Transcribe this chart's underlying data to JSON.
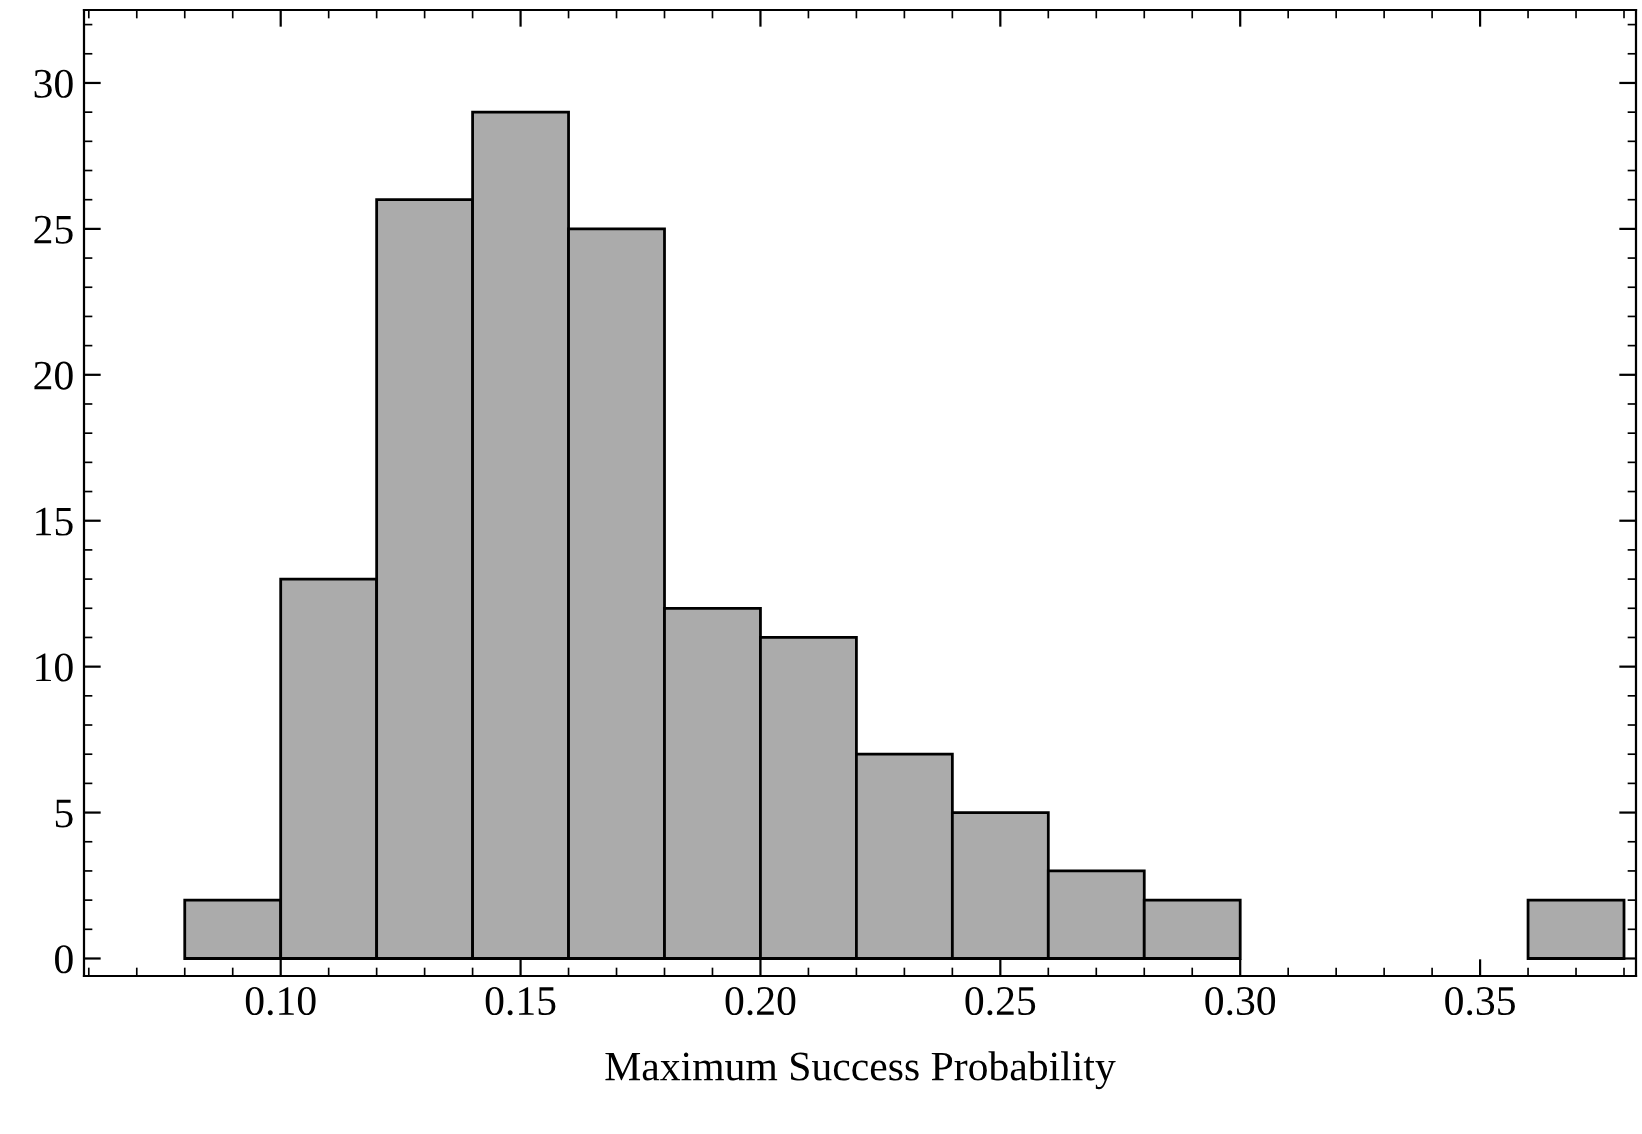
{
  "chart_data": {
    "type": "histogram",
    "xlabel": "Maximum Success Probability",
    "bins": [
      0.08,
      0.1,
      0.12,
      0.14,
      0.16,
      0.18,
      0.2,
      0.22,
      0.24,
      0.26,
      0.28,
      0.3,
      0.32,
      0.34,
      0.36,
      0.38
    ],
    "values": [
      2,
      13,
      26,
      29,
      25,
      12,
      11,
      7,
      5,
      3,
      2,
      0,
      0,
      0,
      2
    ],
    "color": "#ababab",
    "xlim": [
      0.059,
      0.3825
    ],
    "ylim": [
      -0.6,
      32.5
    ],
    "xticks": [
      {
        "value": 0.1,
        "label": "0.10"
      },
      {
        "value": 0.15,
        "label": "0.15"
      },
      {
        "value": 0.2,
        "label": "0.20"
      },
      {
        "value": 0.25,
        "label": "0.25"
      },
      {
        "value": 0.3,
        "label": "0.30"
      },
      {
        "value": 0.35,
        "label": "0.35"
      }
    ],
    "yticks": [
      0,
      5,
      10,
      15,
      20,
      25,
      30
    ],
    "grid": false
  }
}
